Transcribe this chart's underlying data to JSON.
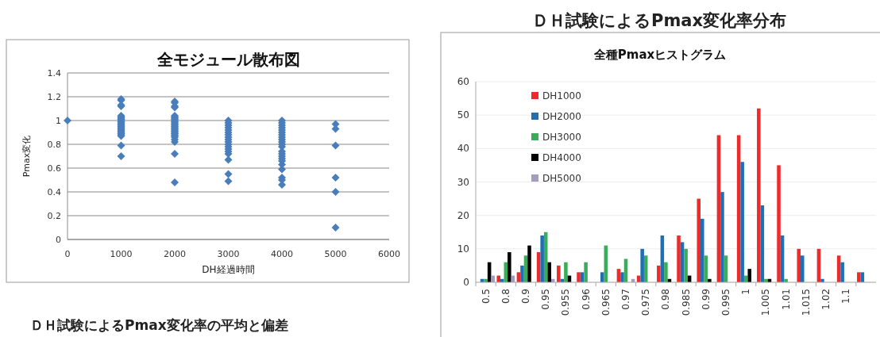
{
  "chart_data": [
    {
      "type": "scatter",
      "title": "全モジュール散布図",
      "xlabel": "DH経過時間",
      "ylabel": "Pmax変化",
      "xlim": [
        0,
        6000
      ],
      "xticks": [
        0,
        1000,
        2000,
        3000,
        4000,
        5000,
        6000
      ],
      "ylim": [
        0,
        1.4
      ],
      "yticks": [
        0,
        0.2,
        0.4,
        0.6,
        0.8,
        1,
        1.2,
        1.4
      ],
      "grid": "y",
      "marker": "diamond",
      "annotations": [
        "ＤＨ試験によるPmax変化率の平均と偏差"
      ],
      "series": [
        {
          "color": "#4a7ebb",
          "x": [
            0,
            1000,
            1000,
            1000,
            1000,
            1000,
            1000,
            1000,
            1000,
            1000,
            1000,
            1000,
            1000,
            1000,
            1000,
            1000,
            1000,
            1000,
            1000,
            1000,
            1000,
            1000,
            1000,
            1000,
            1000,
            2000,
            2000,
            2000,
            2000,
            2000,
            2000,
            2000,
            2000,
            2000,
            2000,
            2000,
            2000,
            2000,
            2000,
            2000,
            2000,
            2000,
            2000,
            2000,
            2000,
            2000,
            2000,
            2000,
            2000,
            2000,
            2000,
            2000,
            3000,
            3000,
            3000,
            3000,
            3000,
            3000,
            3000,
            3000,
            3000,
            3000,
            3000,
            3000,
            3000,
            3000,
            3000,
            3000,
            3000,
            3000,
            4000,
            4000,
            4000,
            4000,
            4000,
            4000,
            4000,
            4000,
            4000,
            4000,
            4000,
            4000,
            4000,
            4000,
            4000,
            4000,
            4000,
            4000,
            4000,
            4000,
            4000,
            4000,
            5000,
            5000,
            5000,
            5000,
            5000,
            5000
          ],
          "values": [
            1.0,
            1.18,
            1.17,
            1.13,
            1.12,
            1.04,
            1.03,
            1.02,
            1.01,
            1.0,
            0.99,
            0.98,
            0.97,
            0.96,
            0.95,
            0.94,
            0.93,
            0.92,
            0.91,
            0.9,
            0.89,
            0.88,
            0.87,
            0.79,
            0.7,
            1.16,
            1.15,
            1.12,
            1.11,
            1.04,
            1.03,
            1.02,
            1.01,
            1.0,
            0.99,
            0.98,
            0.97,
            0.96,
            0.95,
            0.94,
            0.93,
            0.92,
            0.91,
            0.9,
            0.89,
            0.88,
            0.87,
            0.86,
            0.84,
            0.82,
            0.72,
            0.48,
            1.0,
            0.98,
            0.96,
            0.94,
            0.92,
            0.9,
            0.88,
            0.86,
            0.84,
            0.82,
            0.8,
            0.78,
            0.76,
            0.74,
            0.72,
            0.67,
            0.55,
            0.49,
            1.0,
            0.98,
            0.96,
            0.94,
            0.92,
            0.9,
            0.88,
            0.86,
            0.84,
            0.82,
            0.8,
            0.78,
            0.74,
            0.72,
            0.7,
            0.68,
            0.66,
            0.63,
            0.59,
            0.52,
            0.5,
            0.46,
            0.97,
            0.93,
            0.79,
            0.52,
            0.4,
            0.1
          ]
        }
      ]
    },
    {
      "type": "bar",
      "title": "全種Pmaxヒストグラム",
      "annotations": [
        "ＤＨ試験によるPmax変化率分布"
      ],
      "ylim": [
        0,
        60
      ],
      "yticks": [
        0,
        10,
        20,
        30,
        40,
        50,
        60
      ],
      "grid": "y",
      "legend": "top left",
      "categories": [
        "0.5",
        "0.8",
        "0.9",
        "0.95",
        "0.955",
        "0.96",
        "0.965",
        "0.97",
        "0.975",
        "0.98",
        "0.985",
        "0.99",
        "0.995",
        "1",
        "1.005",
        "1.01",
        "1.015",
        "1.02",
        "1.1",
        null
      ],
      "series": [
        {
          "name": "DH1000",
          "color": "#ee2a2a",
          "values": [
            null,
            2,
            3,
            9,
            5,
            3,
            null,
            4,
            2,
            5,
            14,
            25,
            44,
            44,
            52,
            35,
            10,
            10,
            8,
            3
          ]
        },
        {
          "name": "DH2000",
          "color": "#1f6fb5",
          "values": [
            1,
            1,
            5,
            14,
            1,
            3,
            3,
            3,
            10,
            14,
            12,
            19,
            27,
            36,
            23,
            14,
            8,
            1,
            6,
            3
          ]
        },
        {
          "name": "DH3000",
          "color": "#3aad5a",
          "values": [
            1,
            6,
            8,
            15,
            6,
            6,
            11,
            7,
            8,
            6,
            10,
            8,
            8,
            2,
            1,
            1,
            null,
            null,
            null,
            null
          ]
        },
        {
          "name": "DH4000",
          "color": "#000000",
          "values": [
            6,
            9,
            11,
            6,
            2,
            null,
            null,
            null,
            null,
            1,
            2,
            1,
            null,
            4,
            1,
            null,
            null,
            null,
            null,
            null
          ]
        },
        {
          "name": "DH5000",
          "color": "#a59cc0",
          "values": [
            2,
            2,
            null,
            1,
            null,
            null,
            null,
            1,
            null,
            null,
            null,
            null,
            null,
            null,
            null,
            null,
            null,
            null,
            null,
            null
          ]
        }
      ]
    }
  ]
}
